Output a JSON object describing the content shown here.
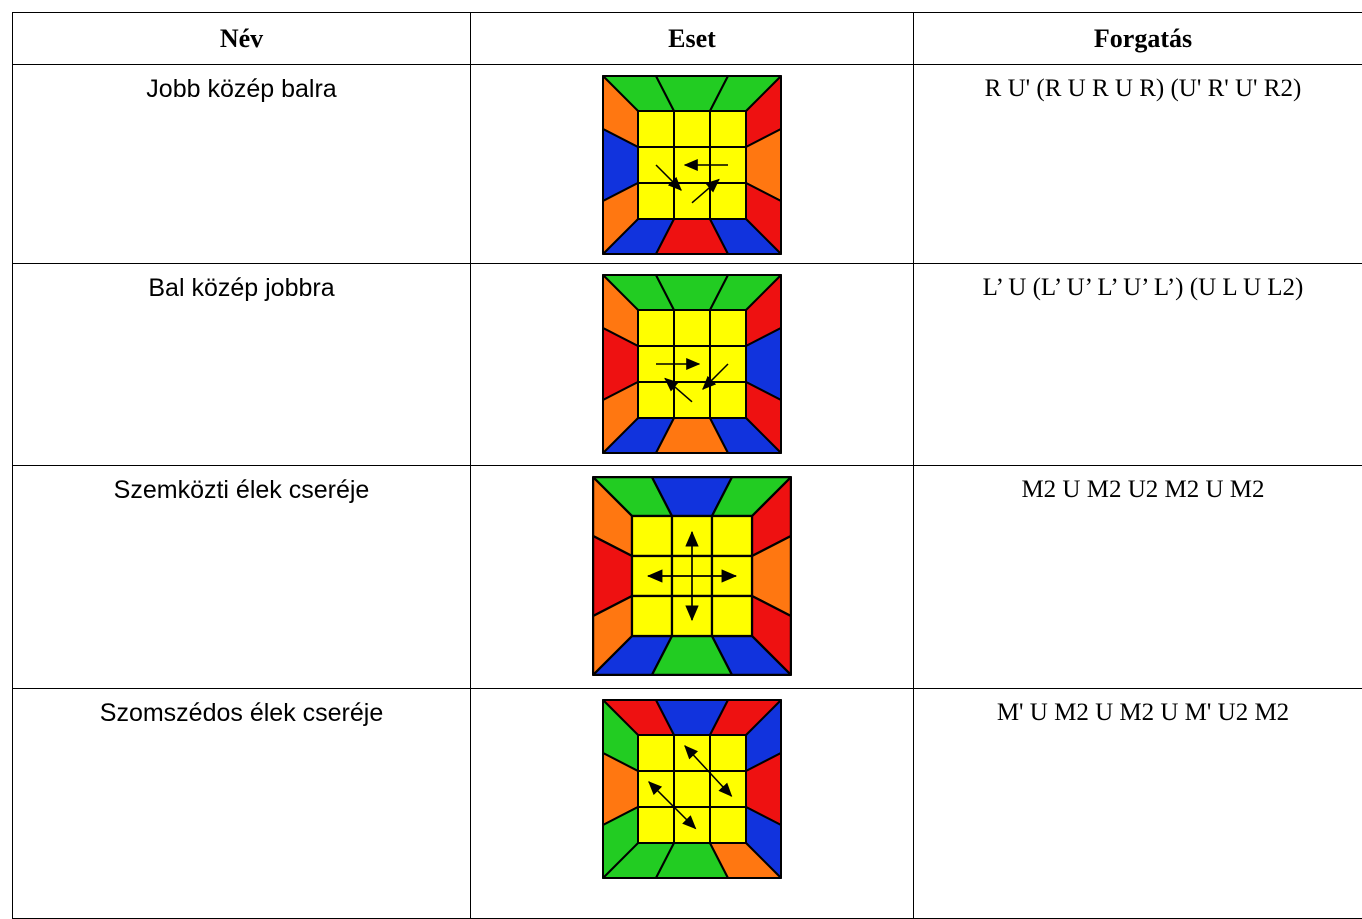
{
  "table": {
    "header": [
      "Név",
      "Eset",
      "Forgatás"
    ],
    "rows": [
      {
        "name": "Jobb közép balra",
        "algorithm": "R U' (R U R U R) (U' R' U' R2)"
      },
      {
        "name": "Bal közép jobbra",
        "algorithm": "L’ U (L’ U’ L’ U’ L’) (U L U L2)"
      },
      {
        "name": "Szemközti élek cseréje",
        "algorithm": "M2 U M2 U2 M2 U M2"
      },
      {
        "name": "Szomszédos élek cseréje",
        "algorithm": "M' U M2 U M2 U M' U2 M2"
      }
    ]
  }
}
